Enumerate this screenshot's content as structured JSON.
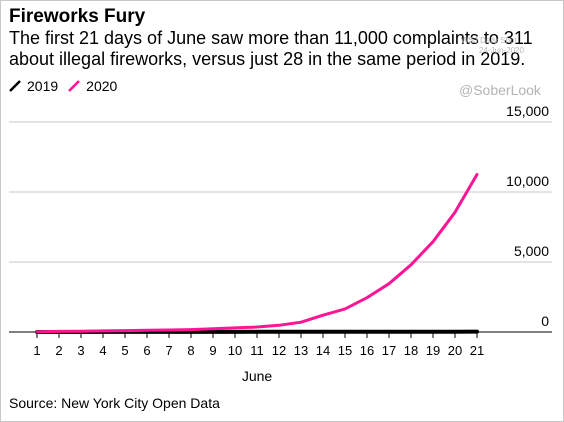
{
  "header": {
    "title": "Fireworks Fury",
    "subtitle": "The first 21 days of June saw more than 11,000 complaints to 311 about illegal fireworks, versus just 28 in the same period in 2019."
  },
  "watermark": {
    "handle": "@SoberLook",
    "shot_line1": "WSJ Daily Shot",
    "shot_line2": "24-Jun-2020"
  },
  "footer": {
    "source": "Source: New York City Open Data"
  },
  "colors": {
    "series_2019": "#000000",
    "series_2020": "#ff1493",
    "grid": "#c8c8c8"
  },
  "chart_data": {
    "type": "line",
    "title": "Fireworks Fury",
    "xlabel": "June",
    "ylabel": "",
    "x": [
      1,
      2,
      3,
      4,
      5,
      6,
      7,
      8,
      9,
      10,
      11,
      12,
      13,
      14,
      15,
      16,
      17,
      18,
      19,
      20,
      21
    ],
    "ylim": [
      0,
      15000
    ],
    "yticks": [
      0,
      5000,
      10000,
      15000
    ],
    "ytick_labels": [
      "0",
      "5,000",
      "10,000",
      "15,000"
    ],
    "y_axis_side": "right",
    "grid": true,
    "legend": "top-left",
    "series": [
      {
        "name": "2019",
        "color": "#000000",
        "values": [
          1,
          2,
          3,
          4,
          5,
          6,
          7,
          8,
          9,
          10,
          11,
          12,
          13,
          14,
          15,
          16,
          17,
          18,
          20,
          24,
          28
        ]
      },
      {
        "name": "2020",
        "color": "#ff1493",
        "values": [
          20,
          40,
          60,
          80,
          100,
          120,
          140,
          170,
          230,
          290,
          360,
          480,
          700,
          1200,
          1650,
          2450,
          3450,
          4800,
          6450,
          8550,
          11250
        ]
      }
    ]
  }
}
